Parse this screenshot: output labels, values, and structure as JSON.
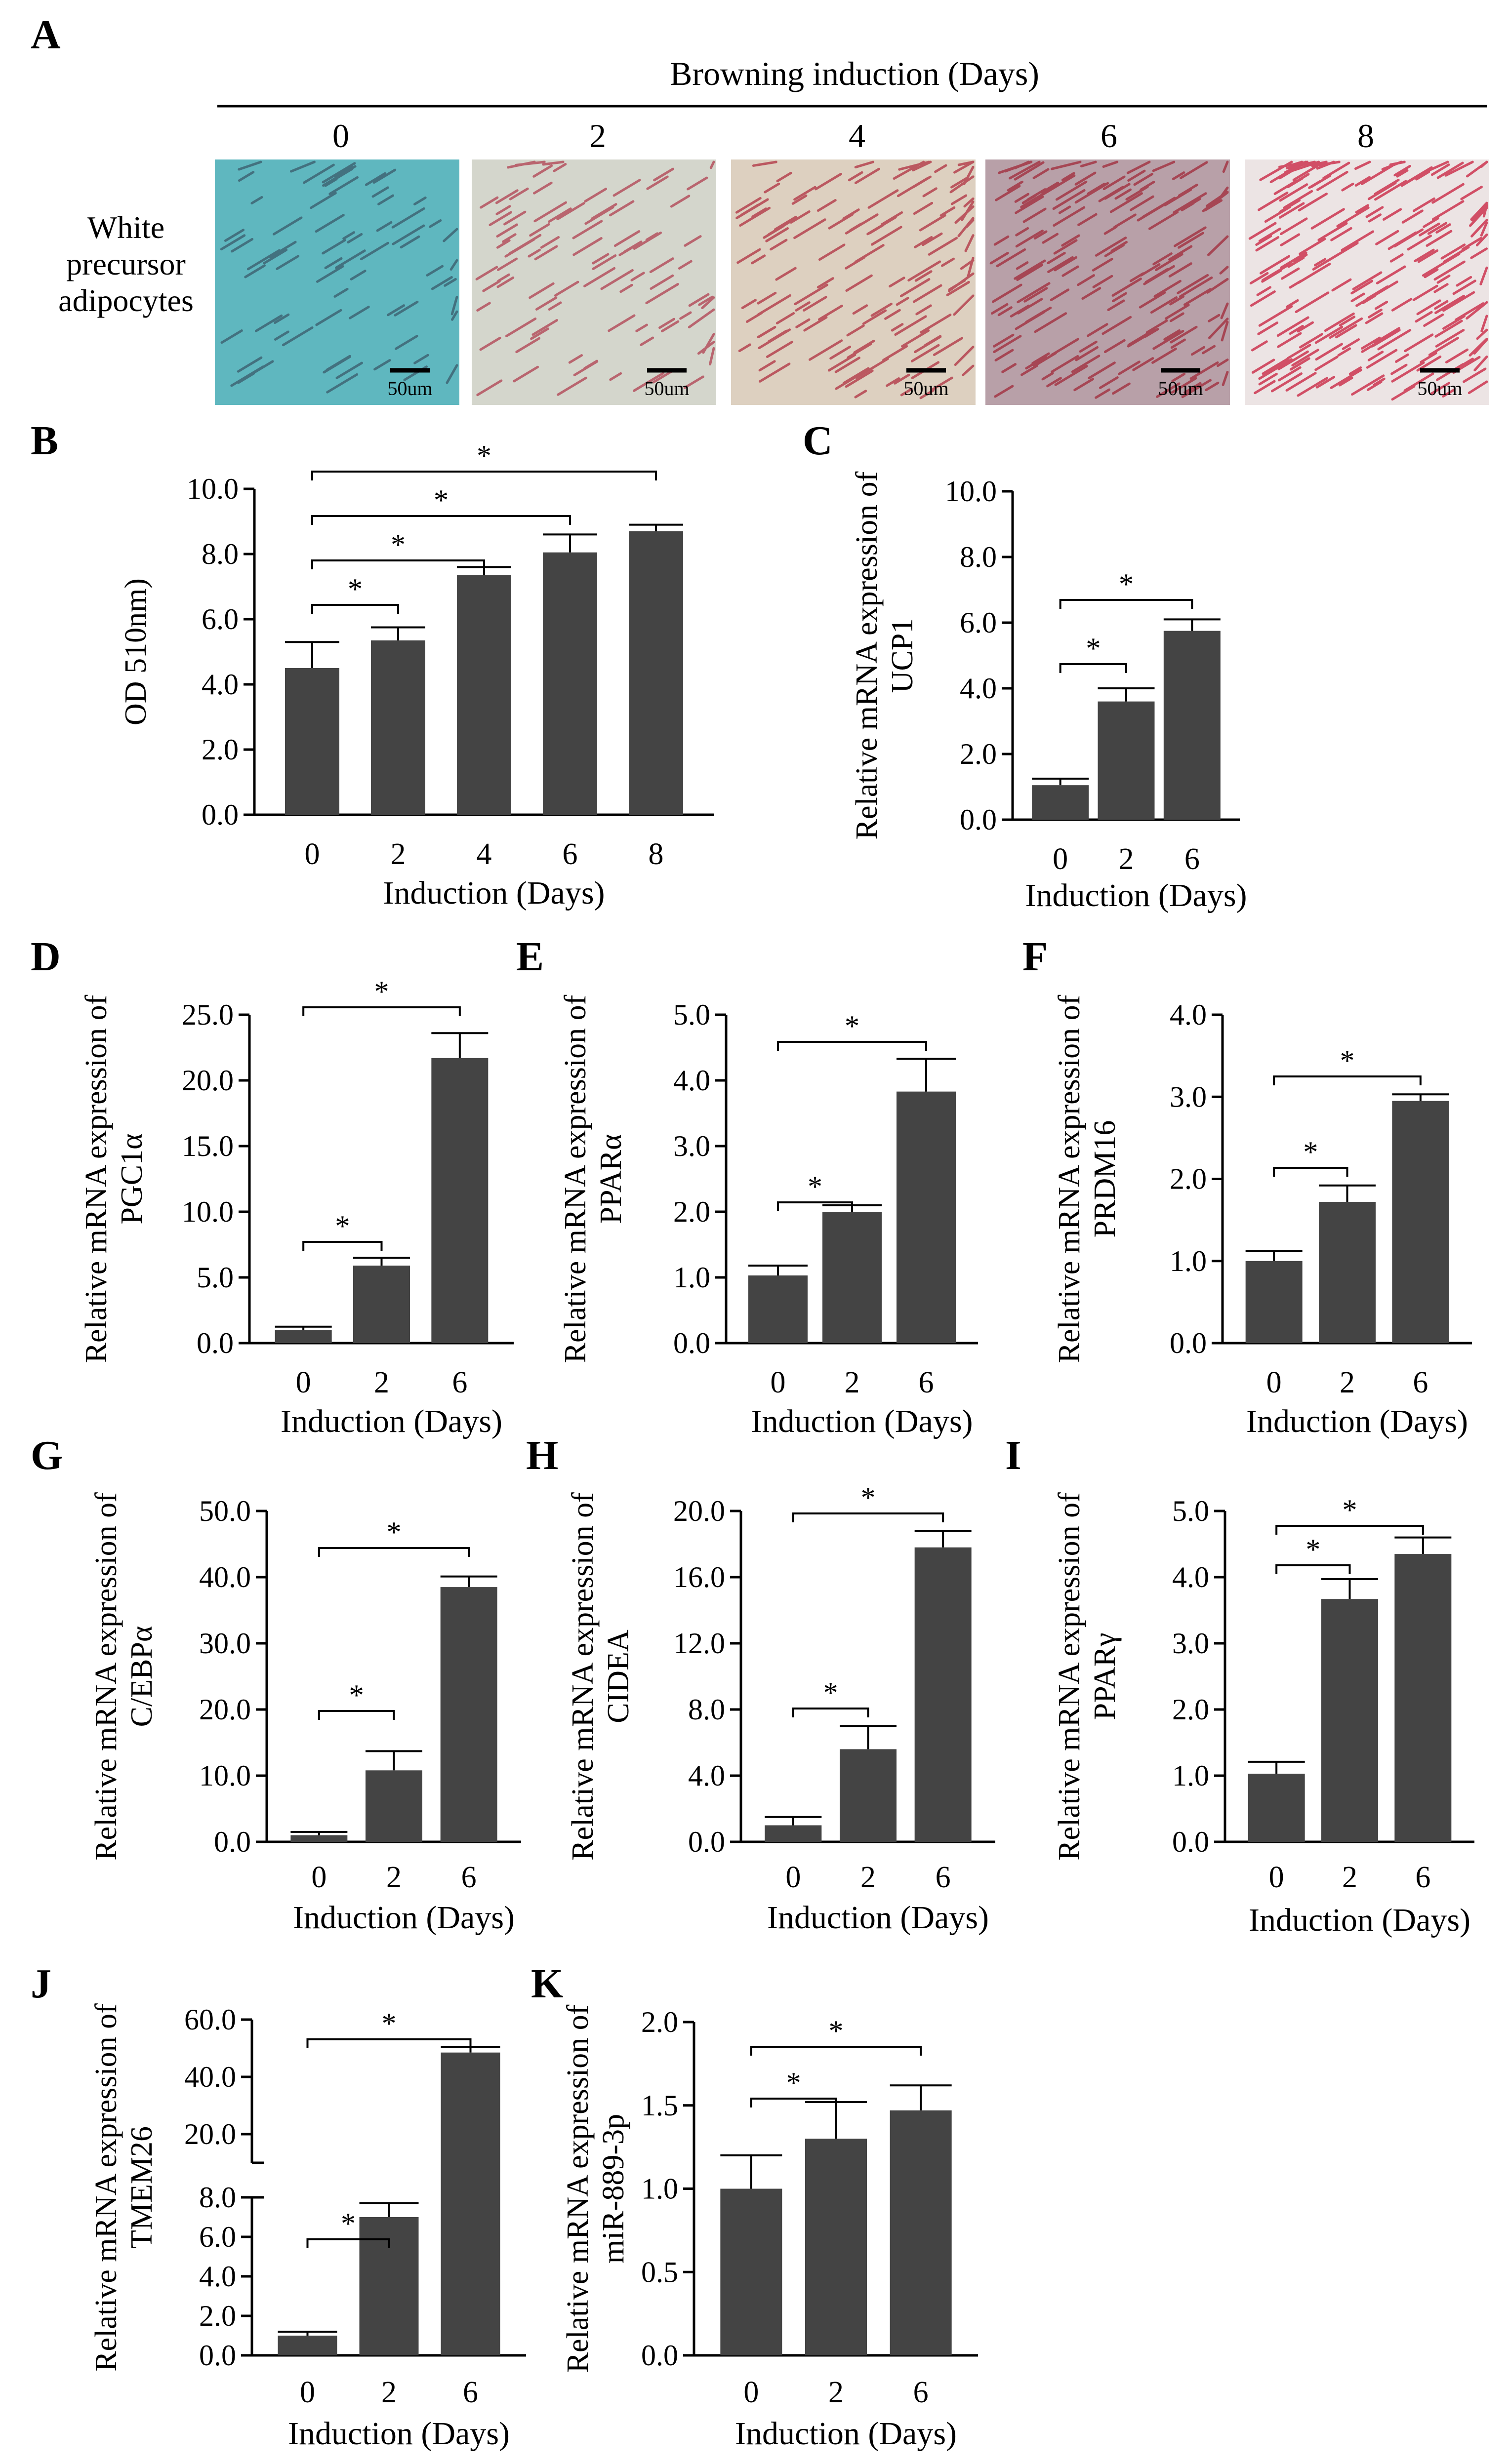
{
  "figure": {
    "panel_a": {
      "letter": "A",
      "header": "Browning induction (Days)",
      "row_label": [
        "White",
        "precursor",
        "adipocytes"
      ],
      "days": [
        "0",
        "2",
        "4",
        "6",
        "8"
      ],
      "scale_label": "50um",
      "image_tints": [
        "#5fb7bf",
        "#d4d6cc",
        "#ddd0c0",
        "#b8a0a8",
        "#ece4e4"
      ],
      "image_speckle": [
        "#3a5a6a",
        "#b04050",
        "#b03040",
        "#a02838",
        "#c81e3c"
      ]
    }
  },
  "chart_data": [
    {
      "panel": "B",
      "type": "bar",
      "categories": [
        "0",
        "2",
        "4",
        "6",
        "8"
      ],
      "values": [
        4.5,
        5.35,
        7.35,
        8.05,
        8.7
      ],
      "errors": [
        0.8,
        0.4,
        0.25,
        0.55,
        0.2
      ],
      "xlabel": "Induction (Days)",
      "ylabel": [
        "OD 510nm)"
      ],
      "ylim": [
        0,
        10
      ],
      "ticks": [
        0,
        2,
        4,
        6,
        8,
        10
      ],
      "tick_labels": [
        "0.0",
        "2.0",
        "4.0",
        "6.0",
        "8.0",
        "10.0"
      ],
      "sig": [
        {
          "from": 0,
          "to": 1,
          "label": "*"
        },
        {
          "from": 0,
          "to": 2,
          "label": "*"
        },
        {
          "from": 0,
          "to": 3,
          "label": "*"
        },
        {
          "from": 0,
          "to": 4,
          "label": "*"
        }
      ]
    },
    {
      "panel": "C",
      "type": "bar",
      "categories": [
        "0",
        "2",
        "6"
      ],
      "values": [
        1.05,
        3.6,
        5.75
      ],
      "errors": [
        0.2,
        0.4,
        0.35
      ],
      "xlabel": "Induction (Days)",
      "ylabel": [
        "Relative mRNA expression of",
        "UCP1"
      ],
      "ylim": [
        0,
        10
      ],
      "ticks": [
        0,
        2,
        4,
        6,
        8,
        10
      ],
      "tick_labels": [
        "0.0",
        "2.0",
        "4.0",
        "6.0",
        "8.0",
        "10.0"
      ],
      "sig": [
        {
          "from": 0,
          "to": 1,
          "label": "*"
        },
        {
          "from": 0,
          "to": 2,
          "label": "*"
        }
      ]
    },
    {
      "panel": "D",
      "type": "bar",
      "categories": [
        "0",
        "2",
        "6"
      ],
      "values": [
        1.0,
        5.9,
        21.7
      ],
      "errors": [
        0.25,
        0.6,
        1.9
      ],
      "xlabel": "Induction (Days)",
      "ylabel": [
        "Relative mRNA expression of",
        "PGC1α"
      ],
      "ylim": [
        0,
        25
      ],
      "ticks": [
        0,
        5,
        10,
        15,
        20,
        25
      ],
      "tick_labels": [
        "0.0",
        "5.0",
        "10.0",
        "15.0",
        "20.0",
        "25.0"
      ],
      "sig": [
        {
          "from": 0,
          "to": 1,
          "label": "*"
        },
        {
          "from": 0,
          "to": 2,
          "label": "*"
        }
      ]
    },
    {
      "panel": "E",
      "type": "bar",
      "categories": [
        "0",
        "2",
        "6"
      ],
      "values": [
        1.03,
        2.0,
        3.83
      ],
      "errors": [
        0.15,
        0.1,
        0.5
      ],
      "xlabel": "Induction (Days)",
      "ylabel": [
        "Relative mRNA expression of",
        "PPARα"
      ],
      "ylim": [
        0,
        5
      ],
      "ticks": [
        0,
        1,
        2,
        3,
        4,
        5
      ],
      "tick_labels": [
        "0.0",
        "1.0",
        "2.0",
        "3.0",
        "4.0",
        "5.0"
      ],
      "sig": [
        {
          "from": 0,
          "to": 1,
          "label": "*"
        },
        {
          "from": 0,
          "to": 2,
          "label": "*"
        }
      ]
    },
    {
      "panel": "F",
      "type": "bar",
      "categories": [
        "0",
        "2",
        "6"
      ],
      "values": [
        1.0,
        1.72,
        2.95
      ],
      "errors": [
        0.12,
        0.2,
        0.08
      ],
      "xlabel": "Induction (Days)",
      "ylabel": [
        "Relative mRNA expression of",
        "PRDM16"
      ],
      "ylim": [
        0,
        4
      ],
      "ticks": [
        0,
        1,
        2,
        3,
        4
      ],
      "tick_labels": [
        "0.0",
        "1.0",
        "2.0",
        "3.0",
        "4.0"
      ],
      "sig": [
        {
          "from": 0,
          "to": 1,
          "label": "*"
        },
        {
          "from": 0,
          "to": 2,
          "label": "*"
        }
      ]
    },
    {
      "panel": "G",
      "type": "bar",
      "categories": [
        "0",
        "2",
        "6"
      ],
      "values": [
        1.0,
        10.8,
        38.5
      ],
      "errors": [
        0.5,
        2.9,
        1.6
      ],
      "xlabel": "Induction (Days)",
      "ylabel": [
        "Relative mRNA expression of",
        "C/EBPα"
      ],
      "ylim": [
        0,
        50
      ],
      "ticks": [
        0,
        10,
        20,
        30,
        40,
        50
      ],
      "tick_labels": [
        "0.0",
        "10.0",
        "20.0",
        "30.0",
        "40.0",
        "50.0"
      ],
      "sig": [
        {
          "from": 0,
          "to": 1,
          "label": "*"
        },
        {
          "from": 0,
          "to": 2,
          "label": "*"
        }
      ]
    },
    {
      "panel": "H",
      "type": "bar",
      "categories": [
        "0",
        "2",
        "6"
      ],
      "values": [
        1.0,
        5.6,
        17.8
      ],
      "errors": [
        0.5,
        1.4,
        1.0
      ],
      "xlabel": "Induction (Days)",
      "ylabel": [
        "Relative mRNA expression of",
        "CIDEA"
      ],
      "ylim": [
        0,
        20
      ],
      "ticks": [
        0,
        4,
        8,
        12,
        16,
        20
      ],
      "tick_labels": [
        "0.0",
        "4.0",
        "8.0",
        "12.0",
        "16.0",
        "20.0"
      ],
      "sig": [
        {
          "from": 0,
          "to": 1,
          "label": "*"
        },
        {
          "from": 0,
          "to": 2,
          "label": "*"
        }
      ]
    },
    {
      "panel": "I",
      "type": "bar",
      "categories": [
        "0",
        "2",
        "6"
      ],
      "values": [
        1.03,
        3.67,
        4.35
      ],
      "errors": [
        0.18,
        0.3,
        0.25
      ],
      "xlabel": "Induction (Days)",
      "ylabel": [
        "Relative mRNA expression of",
        "PPARγ"
      ],
      "ylim": [
        0,
        5
      ],
      "ticks": [
        0,
        1,
        2,
        3,
        4,
        5
      ],
      "tick_labels": [
        "0.0",
        "1.0",
        "2.0",
        "3.0",
        "4.0",
        "5.0"
      ],
      "sig": [
        {
          "from": 0,
          "to": 1,
          "label": "*"
        },
        {
          "from": 0,
          "to": 2,
          "label": "*"
        }
      ]
    },
    {
      "panel": "J",
      "type": "bar",
      "categories": [
        "0",
        "2",
        "6"
      ],
      "values": [
        1.0,
        7.0,
        48.5
      ],
      "errors": [
        0.2,
        0.7,
        2.0
      ],
      "xlabel": "Induction (Days)",
      "ylabel": [
        "Relative mRNA expression of",
        "TMEM26"
      ],
      "broken_axis": {
        "lower": [
          0,
          8
        ],
        "upper": [
          10,
          60
        ]
      },
      "ticks": [
        0,
        2,
        4,
        6,
        8,
        20,
        40,
        60
      ],
      "tick_labels": [
        "0.0",
        "2.0",
        "4.0",
        "6.0",
        "8.0",
        "20.0",
        "40.0",
        "60.0"
      ],
      "sig": [
        {
          "from": 0,
          "to": 1,
          "label": "*"
        },
        {
          "from": 0,
          "to": 2,
          "label": "*"
        }
      ]
    },
    {
      "panel": "K",
      "type": "bar",
      "categories": [
        "0",
        "2",
        "6"
      ],
      "values": [
        1.0,
        1.3,
        1.47
      ],
      "errors": [
        0.2,
        0.22,
        0.15
      ],
      "xlabel": "Induction (Days)",
      "ylabel": [
        "Relative mRNA expression of",
        "miR-889-3p"
      ],
      "ylim": [
        0,
        2
      ],
      "ticks": [
        0,
        0.5,
        1,
        1.5,
        2
      ],
      "tick_labels": [
        "0.0",
        "0.5",
        "1.0",
        "1.5",
        "2.0"
      ],
      "sig": [
        {
          "from": 0,
          "to": 1,
          "label": "*"
        },
        {
          "from": 0,
          "to": 2,
          "label": "*"
        }
      ]
    }
  ]
}
